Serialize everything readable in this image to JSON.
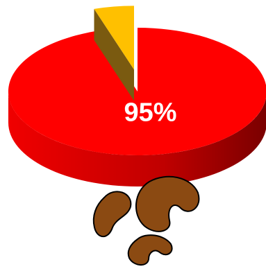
{
  "chart_data": {
    "type": "pie",
    "values": [
      95,
      5
    ],
    "value_labels": [
      "95%",
      null
    ],
    "colors": [
      "#ff0000",
      "#ffc000"
    ],
    "exploded": [
      false,
      true
    ]
  }
}
